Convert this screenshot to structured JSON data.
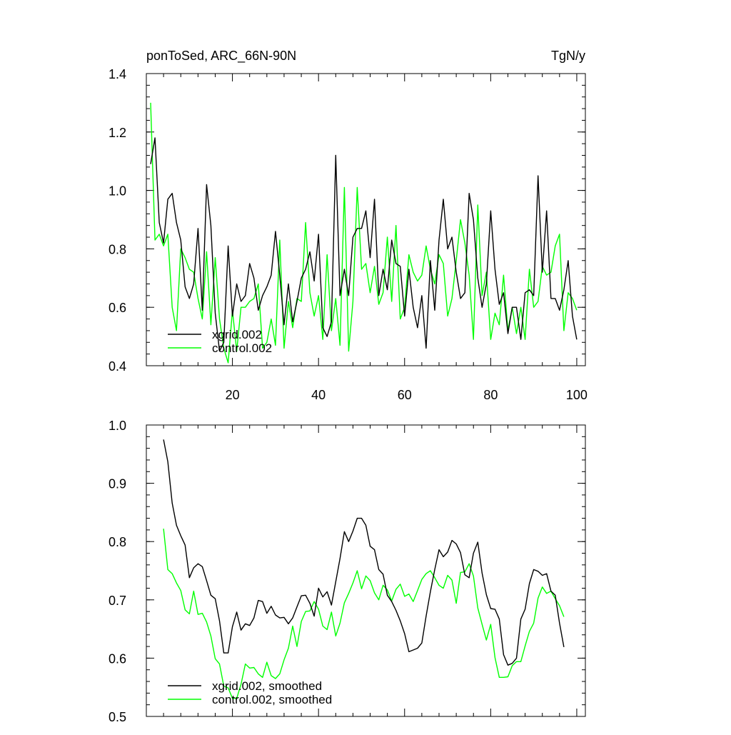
{
  "chart_data": [
    {
      "type": "line",
      "title": "ponToSed, ARC_66N-90N",
      "units": "TgN/y",
      "xlim": [
        0,
        102
      ],
      "ylim": [
        0.4,
        1.4
      ],
      "xticks": [
        20,
        40,
        60,
        80,
        100
      ],
      "yticks": [
        0.4,
        0.6,
        0.8,
        1.0,
        1.2,
        1.4
      ],
      "ytick_labels": [
        "0.4",
        "0.6",
        "0.8",
        "1.0",
        "1.2",
        "1.4"
      ],
      "legend_position": "bottom-left",
      "x": [
        1,
        2,
        3,
        4,
        5,
        6,
        7,
        8,
        9,
        10,
        11,
        12,
        13,
        14,
        15,
        16,
        17,
        18,
        19,
        20,
        21,
        22,
        23,
        24,
        25,
        26,
        27,
        28,
        29,
        30,
        31,
        32,
        33,
        34,
        35,
        36,
        37,
        38,
        39,
        40,
        41,
        42,
        43,
        44,
        45,
        46,
        47,
        48,
        49,
        50,
        51,
        52,
        53,
        54,
        55,
        56,
        57,
        58,
        59,
        60,
        61,
        62,
        63,
        64,
        65,
        66,
        67,
        68,
        69,
        70,
        71,
        72,
        73,
        74,
        75,
        76,
        77,
        78,
        79,
        80,
        81,
        82,
        83,
        84,
        85,
        86,
        87,
        88,
        89,
        90,
        91,
        92,
        93,
        94,
        95,
        96,
        97,
        98,
        99,
        100
      ],
      "series": [
        {
          "name": "xgrid.002",
          "color": "#000000",
          "values": [
            1.09,
            1.18,
            0.89,
            0.82,
            0.97,
            0.99,
            0.89,
            0.83,
            0.67,
            0.63,
            0.68,
            0.87,
            0.59,
            1.02,
            0.88,
            0.58,
            0.45,
            0.48,
            0.81,
            0.57,
            0.68,
            0.62,
            0.64,
            0.75,
            0.7,
            0.59,
            0.64,
            0.67,
            0.71,
            0.86,
            0.71,
            0.54,
            0.68,
            0.55,
            0.62,
            0.7,
            0.73,
            0.79,
            0.69,
            0.85,
            0.53,
            0.5,
            0.55,
            1.12,
            0.64,
            0.73,
            0.64,
            0.84,
            0.87,
            0.87,
            0.93,
            0.77,
            0.97,
            0.64,
            0.73,
            0.66,
            0.83,
            0.75,
            0.74,
            0.57,
            0.73,
            0.6,
            0.53,
            0.64,
            0.46,
            0.76,
            0.59,
            0.83,
            0.97,
            0.8,
            0.84,
            0.72,
            0.63,
            0.65,
            0.99,
            0.9,
            0.7,
            0.6,
            0.68,
            0.93,
            0.73,
            0.61,
            0.65,
            0.51,
            0.6,
            0.6,
            0.49,
            0.65,
            0.66,
            0.64,
            1.05,
            0.72,
            0.93,
            0.63,
            0.63,
            0.59,
            0.66,
            0.76,
            0.57,
            0.49
          ]
        },
        {
          "name": "control.002",
          "color": "#00ff00",
          "values": [
            1.3,
            0.83,
            0.85,
            0.81,
            0.85,
            0.6,
            0.52,
            0.8,
            0.77,
            0.73,
            0.72,
            0.63,
            0.56,
            0.79,
            0.54,
            0.77,
            0.56,
            0.46,
            0.41,
            0.59,
            0.45,
            0.6,
            0.6,
            0.62,
            0.63,
            0.68,
            0.46,
            0.48,
            0.56,
            0.47,
            0.83,
            0.46,
            0.62,
            0.53,
            0.63,
            0.62,
            0.89,
            0.65,
            0.57,
            0.64,
            0.49,
            0.78,
            0.52,
            0.63,
            0.47,
            1.01,
            0.45,
            0.62,
            1.01,
            0.73,
            0.75,
            0.65,
            0.74,
            0.61,
            0.65,
            0.84,
            0.62,
            0.88,
            0.56,
            0.6,
            0.78,
            0.72,
            0.69,
            0.71,
            0.81,
            0.73,
            0.68,
            0.78,
            0.75,
            0.57,
            0.63,
            0.76,
            0.9,
            0.82,
            0.71,
            0.49,
            0.95,
            0.64,
            0.72,
            0.49,
            0.58,
            0.54,
            0.71,
            0.52,
            0.6,
            0.51,
            0.6,
            0.49,
            0.73,
            0.6,
            0.62,
            0.74,
            0.71,
            0.72,
            0.81,
            0.85,
            0.52,
            0.65,
            0.63,
            0.59
          ]
        }
      ]
    },
    {
      "type": "line",
      "xlim": [
        0,
        102
      ],
      "ylim": [
        0.5,
        1.0
      ],
      "xticks": [
        20,
        40,
        60,
        80,
        100
      ],
      "yticks": [
        0.5,
        0.6,
        0.7,
        0.8,
        0.9,
        1.0
      ],
      "ytick_labels": [
        "0.5",
        "0.6",
        "0.7",
        "0.8",
        "0.9",
        "1.0"
      ],
      "legend_position": "bottom-left",
      "x": [
        4,
        5,
        6,
        7,
        8,
        9,
        10,
        11,
        12,
        13,
        14,
        15,
        16,
        17,
        18,
        19,
        20,
        21,
        22,
        23,
        24,
        25,
        26,
        27,
        28,
        29,
        30,
        31,
        32,
        33,
        34,
        35,
        36,
        37,
        38,
        39,
        40,
        41,
        42,
        43,
        44,
        45,
        46,
        47,
        48,
        49,
        50,
        51,
        52,
        53,
        54,
        55,
        56,
        57,
        58,
        59,
        60,
        61,
        62,
        63,
        64,
        65,
        66,
        67,
        68,
        69,
        70,
        71,
        72,
        73,
        74,
        75,
        76,
        77,
        78,
        79,
        80,
        81,
        82,
        83,
        84,
        85,
        86,
        87,
        88,
        89,
        90,
        91,
        92,
        93,
        94,
        95,
        96,
        97
      ],
      "series": [
        {
          "name": "xgrid.002, smoothed",
          "color": "#000000",
          "values": [
            0.975,
            0.937,
            0.866,
            0.828,
            0.81,
            0.794,
            0.738,
            0.755,
            0.762,
            0.757,
            0.733,
            0.708,
            0.702,
            0.664,
            0.609,
            0.609,
            0.654,
            0.679,
            0.648,
            0.659,
            0.656,
            0.669,
            0.699,
            0.697,
            0.677,
            0.689,
            0.674,
            0.669,
            0.67,
            0.659,
            0.669,
            0.688,
            0.707,
            0.708,
            0.694,
            0.672,
            0.72,
            0.705,
            0.714,
            0.691,
            0.731,
            0.771,
            0.817,
            0.8,
            0.818,
            0.84,
            0.84,
            0.828,
            0.792,
            0.786,
            0.752,
            0.744,
            0.708,
            0.697,
            0.682,
            0.664,
            0.642,
            0.611,
            0.614,
            0.617,
            0.626,
            0.672,
            0.714,
            0.752,
            0.786,
            0.774,
            0.782,
            0.802,
            0.796,
            0.781,
            0.743,
            0.738,
            0.78,
            0.799,
            0.746,
            0.709,
            0.685,
            0.684,
            0.667,
            0.606,
            0.588,
            0.591,
            0.6,
            0.667,
            0.684,
            0.728,
            0.752,
            0.749,
            0.742,
            0.745,
            0.715,
            0.708,
            0.66,
            0.619
          ]
        },
        {
          "name": "control.002, smoothed",
          "color": "#00ff00",
          "values": [
            0.822,
            0.752,
            0.745,
            0.729,
            0.716,
            0.683,
            0.676,
            0.715,
            0.675,
            0.677,
            0.662,
            0.638,
            0.599,
            0.59,
            0.552,
            0.549,
            0.531,
            0.531,
            0.555,
            0.59,
            0.583,
            0.584,
            0.573,
            0.567,
            0.593,
            0.57,
            0.565,
            0.573,
            0.597,
            0.617,
            0.655,
            0.62,
            0.663,
            0.68,
            0.681,
            0.697,
            0.684,
            0.655,
            0.649,
            0.679,
            0.638,
            0.66,
            0.695,
            0.711,
            0.729,
            0.75,
            0.719,
            0.741,
            0.733,
            0.712,
            0.7,
            0.725,
            0.717,
            0.698,
            0.718,
            0.727,
            0.706,
            0.71,
            0.697,
            0.716,
            0.735,
            0.745,
            0.75,
            0.738,
            0.725,
            0.72,
            0.742,
            0.734,
            0.694,
            0.747,
            0.748,
            0.762,
            0.741,
            0.686,
            0.658,
            0.631,
            0.658,
            0.601,
            0.567,
            0.567,
            0.568,
            0.587,
            0.594,
            0.594,
            0.621,
            0.646,
            0.66,
            0.703,
            0.722,
            0.711,
            0.715,
            0.702,
            0.69,
            0.671
          ]
        }
      ]
    }
  ]
}
